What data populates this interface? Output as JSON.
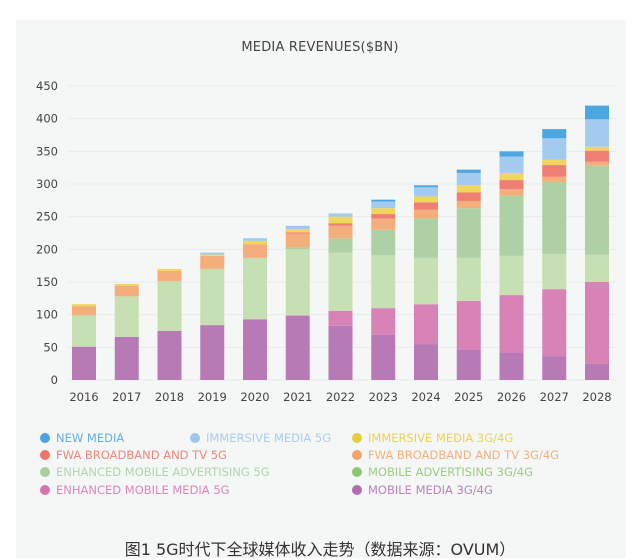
{
  "chart_data": {
    "type": "bar",
    "stacked": true,
    "title": "MEDIA REVENUES($BN)",
    "xlabel": "",
    "ylabel": "",
    "ylim": [
      0,
      450
    ],
    "yticks": [
      0,
      50,
      100,
      150,
      200,
      250,
      300,
      350,
      400,
      450
    ],
    "grid": true,
    "legend_position": "bottom",
    "categories": [
      "2016",
      "2017",
      "2018",
      "2019",
      "2020",
      "2021",
      "2022",
      "2023",
      "2024",
      "2025",
      "2026",
      "2027",
      "2028"
    ],
    "series": [
      {
        "name": "MOBILE MEDIA 3G/4G",
        "color": "#b87ab5",
        "legend_color": "#b06fb0",
        "values": [
          51,
          66,
          75,
          84,
          93,
          98,
          83,
          69,
          55,
          46,
          42,
          36,
          25
        ]
      },
      {
        "name": "ENHANCED MOBILE MEDIA 5G",
        "color": "#d982b8",
        "legend_color": "#d973b0",
        "values": [
          0,
          0,
          0,
          0,
          0,
          1,
          23,
          41,
          61,
          75,
          88,
          103,
          125
        ]
      },
      {
        "name": "MOBILE ADVERTISING 3G/4G",
        "color": "#c6e0b3",
        "legend_color": "#8dc670",
        "values": [
          48,
          62,
          76,
          86,
          94,
          101,
          89,
          81,
          71,
          66,
          60,
          54,
          42
        ]
      },
      {
        "name": "ENHANCED MOBILE ADVERTISING 5G",
        "color": "#add0a4",
        "legend_color": "#a9cfa0",
        "values": [
          0,
          0,
          0,
          0,
          0,
          3,
          22,
          39,
          60,
          76,
          92,
          110,
          136
        ]
      },
      {
        "name": "FWA BROADBAND AND TV 3G/4G",
        "color": "#f3ae7c",
        "legend_color": "#f2a56a",
        "values": [
          14,
          16,
          16,
          20,
          21,
          21,
          19,
          17,
          14,
          11,
          10,
          8,
          6
        ]
      },
      {
        "name": "FWA BROADBAND AND TV 5G",
        "color": "#ef7f74",
        "legend_color": "#ee7468",
        "values": [
          0,
          0,
          0,
          0,
          0,
          2,
          4,
          7,
          11,
          13,
          14,
          18,
          17
        ]
      },
      {
        "name": "IMMERSIVE  MEDIA 3G/4G",
        "color": "#f0d65c",
        "legend_color": "#e8cc3a",
        "values": [
          3,
          3,
          3,
          2,
          5,
          5,
          10,
          9,
          9,
          11,
          11,
          8,
          6
        ]
      },
      {
        "name": "IMMERSIVE  MEDIA 5G",
        "color": "#a2cbef",
        "legend_color": "#9fc6ec",
        "values": [
          0,
          0,
          0,
          3,
          4,
          5,
          5,
          10,
          14,
          19,
          25,
          33,
          42
        ]
      },
      {
        "name": "NEW MEDIA",
        "color": "#4ca7e1",
        "legend_color": "#4aa3dd",
        "values": [
          0,
          0,
          0,
          0,
          0,
          0,
          0,
          3,
          3,
          5,
          8,
          14,
          21
        ]
      }
    ]
  },
  "legend_order": [
    8,
    7,
    6,
    5,
    4,
    3,
    2,
    1,
    0
  ],
  "caption": "图1  5G时代下全球媒体收入走势（数据来源：OVUM）"
}
